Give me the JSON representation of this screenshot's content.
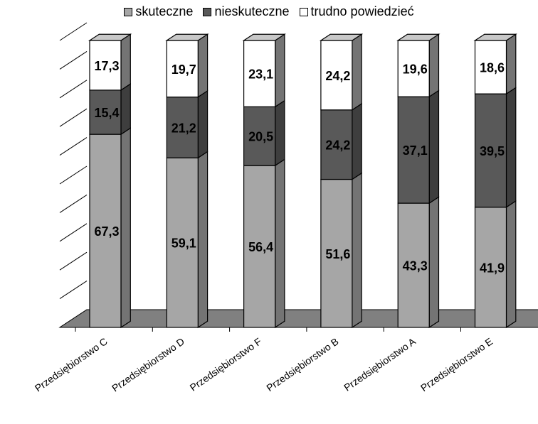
{
  "chart_data": {
    "type": "bar",
    "stacked": true,
    "three_d": true,
    "categories": [
      "Przedsiębiorstwo C",
      "Przedsiębiorstwo D",
      "Przedsiębiorstwo F",
      "Przedsiębiorstwo B",
      "Przedsiębiorstwo A",
      "Przedsiębiorstwo E"
    ],
    "series": [
      {
        "name": "skuteczne",
        "values": [
          67.3,
          59.1,
          56.4,
          51.6,
          43.3,
          41.9
        ],
        "color": "#a6a6a6"
      },
      {
        "name": "nieskuteczne",
        "values": [
          15.4,
          21.2,
          20.5,
          24.2,
          37.1,
          39.5
        ],
        "color": "#595959"
      },
      {
        "name": "trudno powiedzieć",
        "values": [
          17.3,
          19.7,
          23.1,
          24.2,
          19.6,
          18.6
        ],
        "color": "#ffffff"
      }
    ],
    "ylim": [
      0,
      100
    ],
    "grid": true,
    "legend_position": "top",
    "title": "",
    "xlabel": "",
    "ylabel": ""
  }
}
